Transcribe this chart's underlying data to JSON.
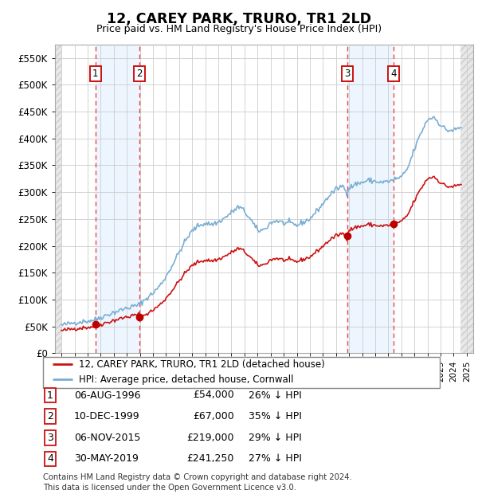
{
  "title": "12, CAREY PARK, TRURO, TR1 2LD",
  "subtitle": "Price paid vs. HM Land Registry's House Price Index (HPI)",
  "transactions": [
    {
      "label": 1,
      "date_num": 1996.59,
      "price": 54000
    },
    {
      "label": 2,
      "date_num": 1999.94,
      "price": 67000
    },
    {
      "label": 3,
      "date_num": 2015.85,
      "price": 219000
    },
    {
      "label": 4,
      "date_num": 2019.41,
      "price": 241250
    }
  ],
  "hpi_line_color": "#7aaed4",
  "price_line_color": "#cc1111",
  "marker_color": "#bb0000",
  "vline_color": "#ee4444",
  "shade_color": "#ddeeff",
  "hatch_bg_color": "#eeeeee",
  "legend_label_price": "12, CAREY PARK, TRURO, TR1 2LD (detached house)",
  "legend_label_hpi": "HPI: Average price, detached house, Cornwall",
  "date_strs": [
    "06-AUG-1996",
    "10-DEC-1999",
    "06-NOV-2015",
    "30-MAY-2019"
  ],
  "price_strs": [
    "£54,000",
    "£67,000",
    "£219,000",
    "£241,250"
  ],
  "pct_strs": [
    "26% ↓ HPI",
    "35% ↓ HPI",
    "29% ↓ HPI",
    "27% ↓ HPI"
  ],
  "footer": "Contains HM Land Registry data © Crown copyright and database right 2024.\nThis data is licensed under the Open Government Licence v3.0.",
  "xlim": [
    1993.5,
    2025.5
  ],
  "ylim": [
    0,
    575000
  ],
  "yticks": [
    0,
    50000,
    100000,
    150000,
    200000,
    250000,
    300000,
    350000,
    400000,
    450000,
    500000,
    550000
  ],
  "ytick_labels": [
    "£0",
    "£50K",
    "£100K",
    "£150K",
    "£200K",
    "£250K",
    "£300K",
    "£350K",
    "£400K",
    "£450K",
    "£500K",
    "£550K"
  ]
}
